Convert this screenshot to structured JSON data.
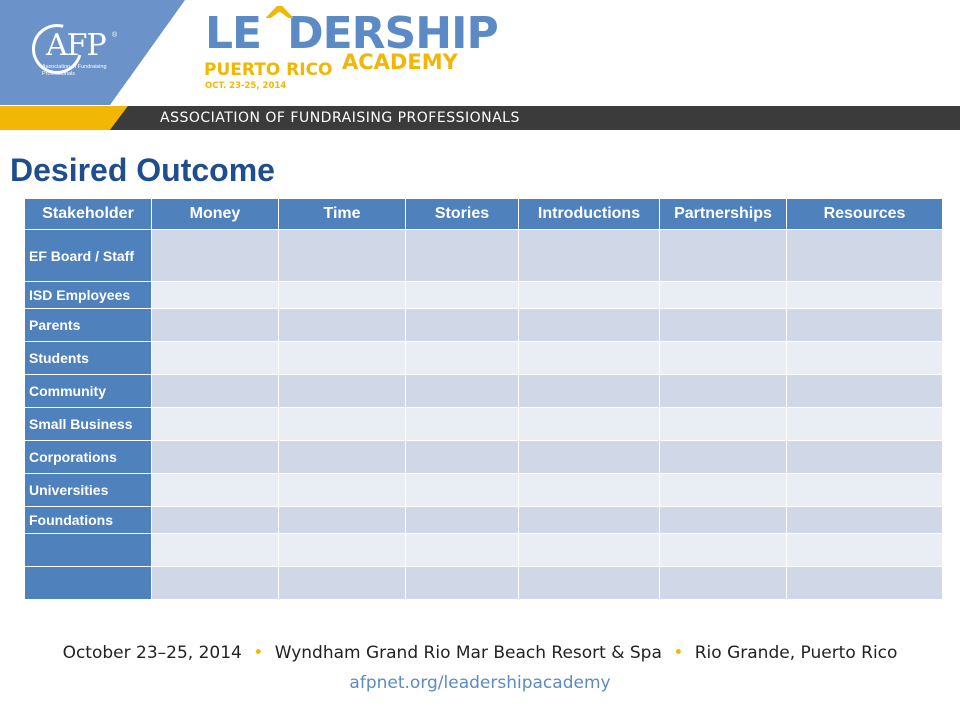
{
  "header": {
    "afp_logo_text": "AFP",
    "afp_registered": "®",
    "afp_subtitle": "Association of Fundraising Professionals",
    "leadership_part1": "LE",
    "leadership_caret": "^",
    "leadership_part2": "DERSHIP",
    "academy": "ACADEMY",
    "puerto_rico": "PUERTO RICO",
    "dates": "OCT. 23-25, 2014",
    "bar_text": "ASSOCIATION OF FUNDRAISING PROFESSIONALS"
  },
  "page_title": "Desired Outcome",
  "table": {
    "headers": [
      "Stakeholder",
      "Money",
      "Time",
      "Stories",
      "Introductions",
      "Partnerships",
      "Resources"
    ],
    "rows": [
      {
        "label": "EF Board / Staff",
        "cells": [
          "",
          "",
          "",
          "",
          "",
          ""
        ]
      },
      {
        "label": "ISD Employees",
        "cells": [
          "",
          "",
          "",
          "",
          "",
          ""
        ]
      },
      {
        "label": "Parents",
        "cells": [
          "",
          "",
          "",
          "",
          "",
          ""
        ]
      },
      {
        "label": "Students",
        "cells": [
          "",
          "",
          "",
          "",
          "",
          ""
        ]
      },
      {
        "label": "Community",
        "cells": [
          "",
          "",
          "",
          "",
          "",
          ""
        ]
      },
      {
        "label": "Small Business",
        "cells": [
          "",
          "",
          "",
          "",
          "",
          ""
        ]
      },
      {
        "label": "Corporations",
        "cells": [
          "",
          "",
          "",
          "",
          "",
          ""
        ]
      },
      {
        "label": "Universities",
        "cells": [
          "",
          "",
          "",
          "",
          "",
          ""
        ]
      },
      {
        "label": "Foundations",
        "cells": [
          "",
          "",
          "",
          "",
          "",
          ""
        ]
      },
      {
        "label": "",
        "cells": [
          "",
          "",
          "",
          "",
          "",
          ""
        ]
      },
      {
        "label": "",
        "cells": [
          "",
          "",
          "",
          "",
          "",
          ""
        ]
      }
    ]
  },
  "footer": {
    "date": "October 23–25, 2014",
    "separator": "•",
    "venue": "Wyndham Grand Rio Mar Beach Resort & Spa",
    "location": "Rio Grande, Puerto Rico",
    "url": "afpnet.org/leadershipacademy"
  },
  "colors": {
    "header_blue": "#4F81BD",
    "row_dark": "#D0D8E8",
    "row_light": "#E9EDF4",
    "title_blue": "#1F4E8C",
    "bullet_gold": "#F2B705"
  }
}
